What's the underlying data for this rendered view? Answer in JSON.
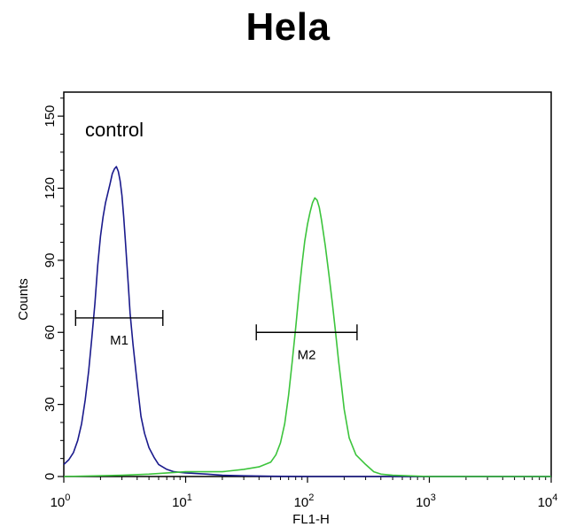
{
  "chart_data": {
    "type": "line",
    "title": "Hela",
    "xlabel": "FL1-H",
    "ylabel": "Counts",
    "x_scale": "log",
    "xlim": [
      1,
      10000
    ],
    "ylim": [
      0,
      160
    ],
    "x_ticks": [
      {
        "value": 1,
        "base": "10",
        "exp": "0"
      },
      {
        "value": 10,
        "base": "10",
        "exp": "1"
      },
      {
        "value": 100,
        "base": "10",
        "exp": "2"
      },
      {
        "value": 1000,
        "base": "10",
        "exp": "3"
      },
      {
        "value": 10000,
        "base": "10",
        "exp": "4"
      }
    ],
    "y_ticks": [
      "0",
      "30",
      "60",
      "90",
      "120",
      "150"
    ],
    "annotation": "control",
    "grid": false,
    "series": [
      {
        "color": "#1a1a8c",
        "x": [
          1.0,
          1.1,
          1.2,
          1.3,
          1.4,
          1.5,
          1.6,
          1.7,
          1.8,
          1.9,
          2.0,
          2.1,
          2.2,
          2.3,
          2.4,
          2.5,
          2.6,
          2.7,
          2.8,
          2.9,
          3.0,
          3.1,
          3.2,
          3.3,
          3.4,
          3.5,
          3.7,
          3.9,
          4.1,
          4.3,
          4.6,
          5.0,
          5.5,
          6.0,
          7.0,
          8.0,
          10,
          15,
          20,
          30,
          50,
          100,
          1000,
          10000
        ],
        "y": [
          5,
          7,
          10,
          15,
          22,
          32,
          44,
          58,
          72,
          88,
          100,
          108,
          114,
          118,
          122,
          126,
          128,
          129,
          127,
          123,
          117,
          108,
          98,
          88,
          78,
          68,
          55,
          44,
          34,
          25,
          18,
          12,
          8,
          5,
          3,
          2,
          1.5,
          1,
          0.5,
          0.3,
          0.1,
          0,
          0,
          0
        ]
      },
      {
        "color": "#3cc43c",
        "x": [
          1.0,
          3,
          5,
          10,
          20,
          30,
          40,
          50,
          55,
          60,
          65,
          70,
          75,
          80,
          85,
          90,
          95,
          100,
          105,
          110,
          115,
          120,
          125,
          130,
          140,
          150,
          160,
          170,
          180,
          190,
          200,
          220,
          250,
          300,
          350,
          400,
          500,
          1000,
          10000
        ],
        "y": [
          0,
          0.5,
          1,
          2,
          2,
          3,
          4,
          6,
          9,
          14,
          22,
          34,
          48,
          62,
          76,
          88,
          98,
          105,
          110,
          114,
          116,
          115,
          112,
          107,
          96,
          84,
          72,
          60,
          48,
          38,
          28,
          16,
          9,
          5,
          2,
          1,
          0.5,
          0,
          0
        ]
      }
    ],
    "gates": [
      {
        "label": "M1",
        "x_start": 1.25,
        "x_end": 6.5,
        "y": 66
      },
      {
        "label": "M2",
        "x_start": 38,
        "x_end": 255,
        "y": 60
      }
    ]
  }
}
